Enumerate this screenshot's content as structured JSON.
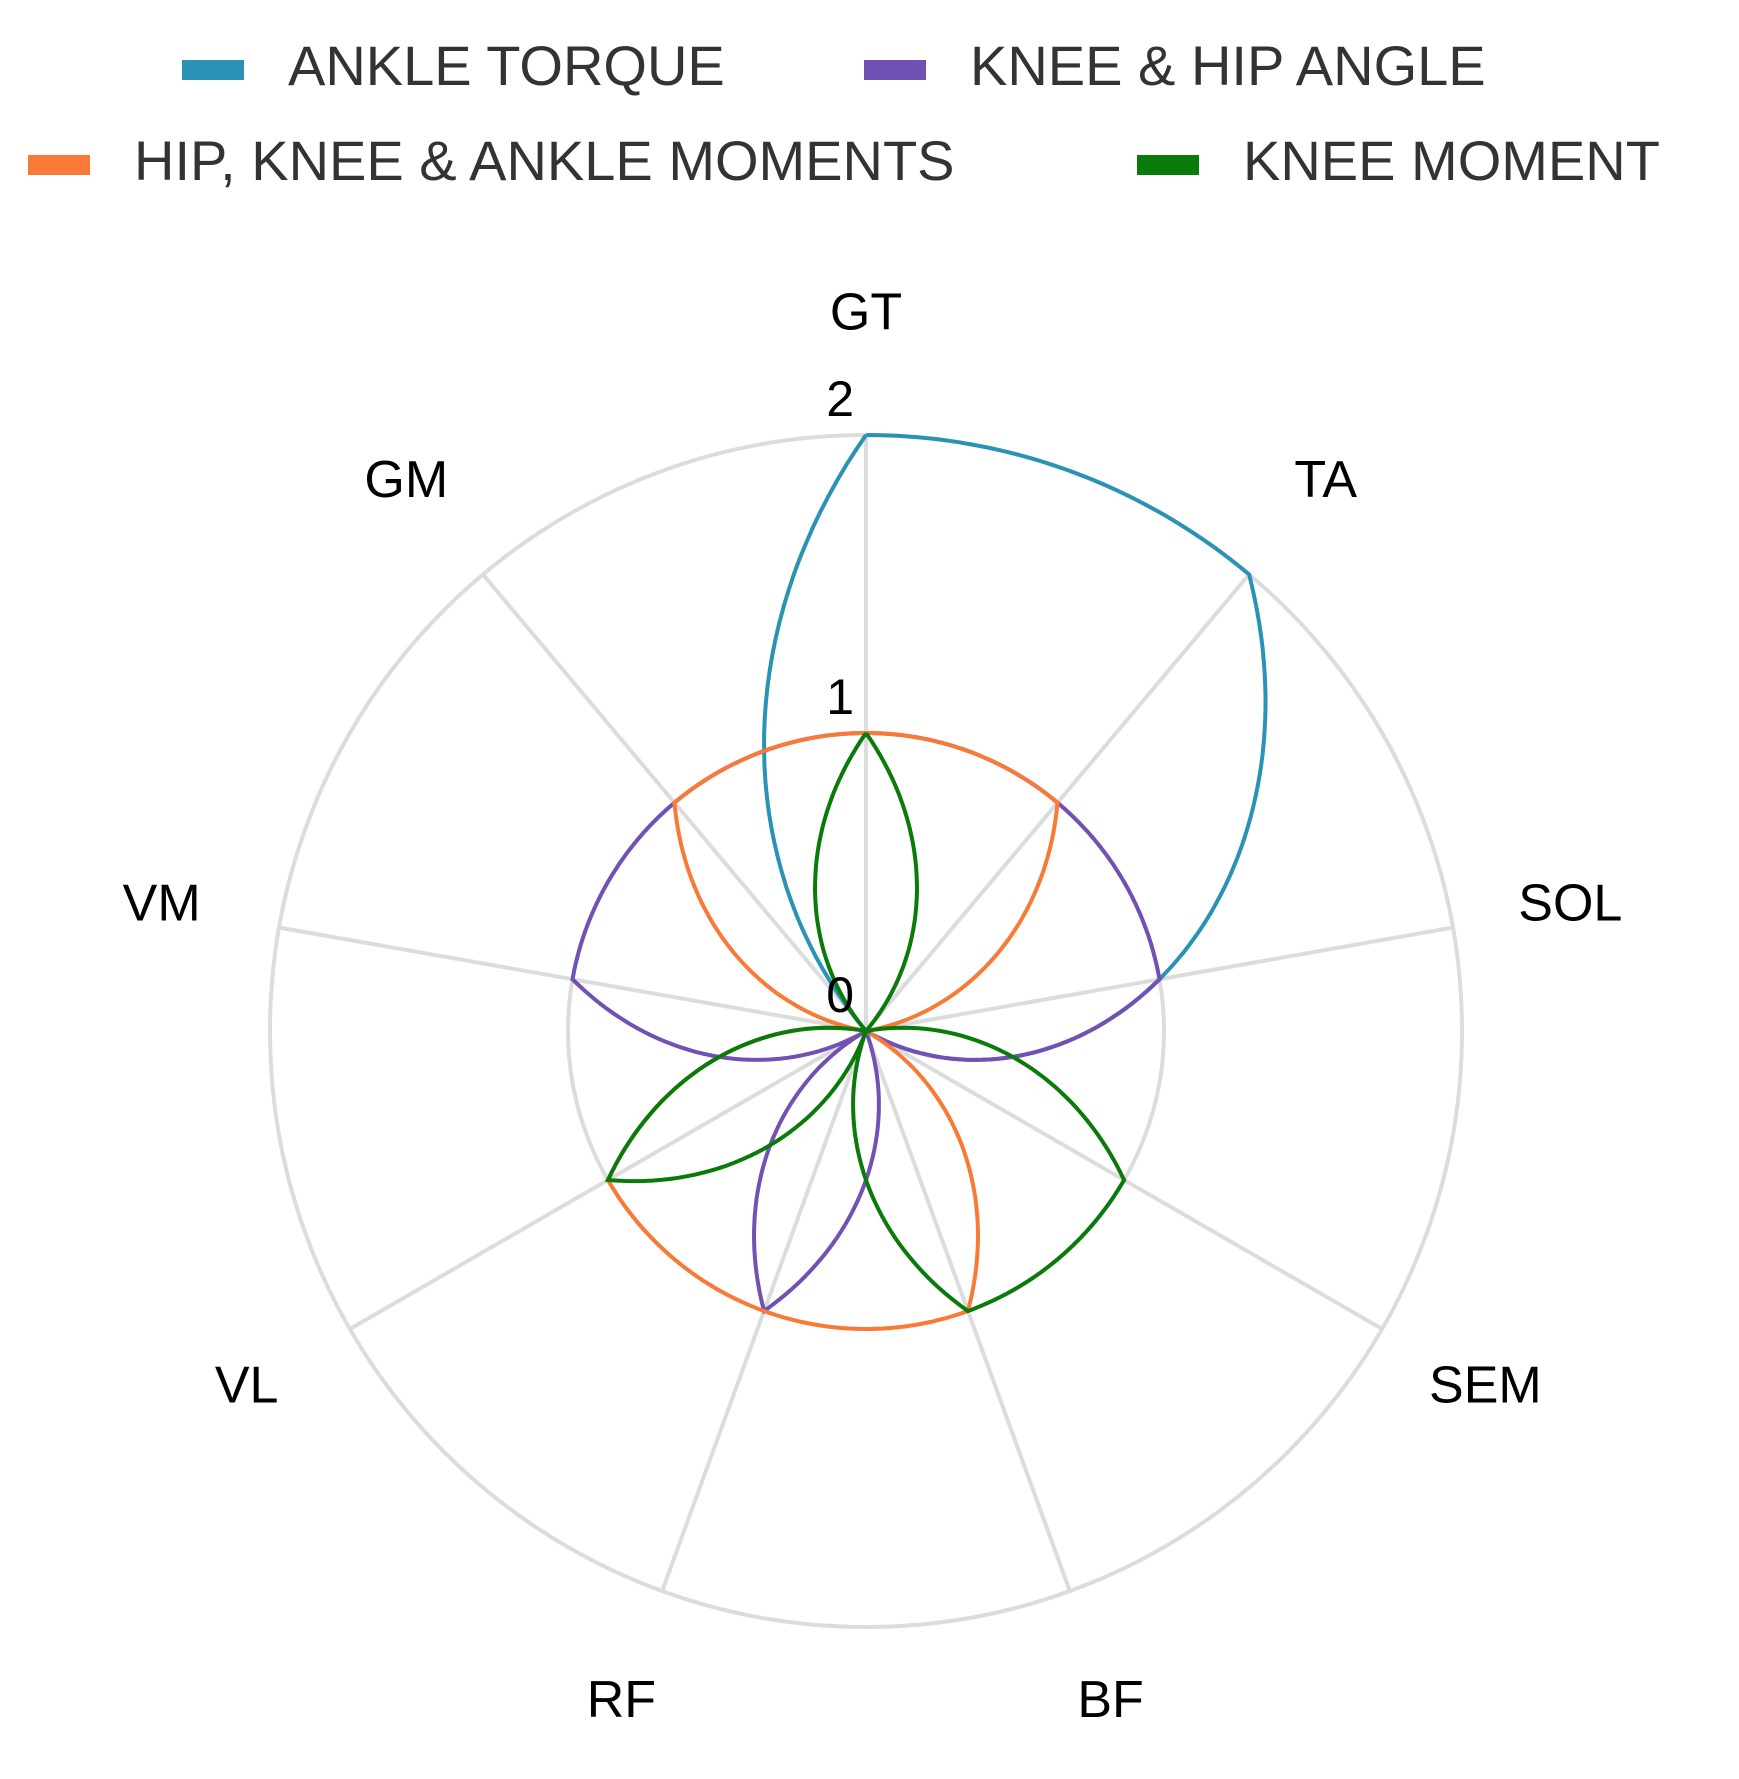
{
  "chart_data": {
    "type": "polar-line",
    "categories": [
      "GT",
      "TA",
      "SOL",
      "SEM",
      "BF",
      "RF",
      "VL",
      "VM",
      "GM"
    ],
    "series": [
      {
        "name": "ANKLE TORQUE",
        "color": "#2a93b5",
        "values": [
          2,
          2,
          1,
          0,
          0,
          0,
          0,
          0,
          0
        ]
      },
      {
        "name": "KNEE & HIP ANGLE",
        "color": "#7251b5",
        "values": [
          1,
          1,
          1,
          0,
          0,
          1,
          0,
          1,
          1
        ]
      },
      {
        "name": "HIP, KNEE & ANKLE MOMENTS",
        "color": "#f97a36",
        "values": [
          1,
          1,
          0,
          0,
          1,
          1,
          1,
          0,
          1
        ]
      },
      {
        "name": "KNEE MOMENT",
        "color": "#0a7a0a",
        "values": [
          1,
          0,
          0,
          1,
          1,
          0,
          1,
          0,
          0
        ]
      }
    ],
    "ylim": [
      0,
      2
    ],
    "yticks": [
      0,
      1,
      2
    ],
    "grid": true,
    "legend": "top"
  }
}
